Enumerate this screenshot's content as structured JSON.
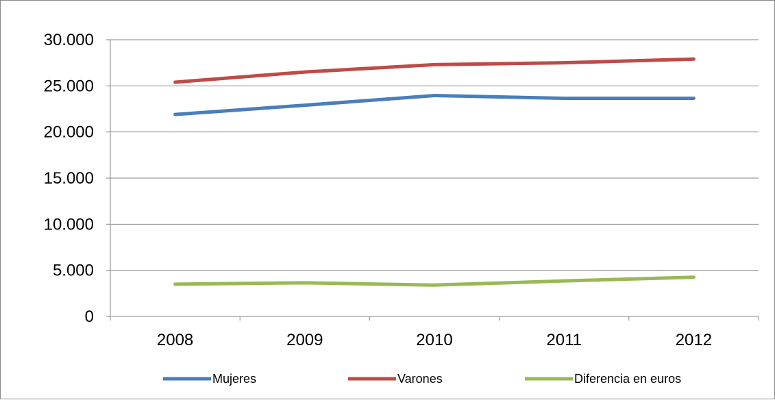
{
  "chart_data": {
    "type": "line",
    "categories": [
      "2008",
      "2009",
      "2010",
      "2011",
      "2012"
    ],
    "series": [
      {
        "name": "Mujeres",
        "color": "#4a7ebb",
        "values": [
          21900,
          22900,
          23950,
          23650,
          23650
        ]
      },
      {
        "name": "Varones",
        "color": "#be4b48",
        "values": [
          25400,
          26500,
          27300,
          27500,
          27900
        ]
      },
      {
        "name": "Diferencia en euros",
        "color": "#98b954",
        "values": [
          3500,
          3650,
          3400,
          3850,
          4250
        ]
      }
    ],
    "ylim": [
      0,
      30000
    ],
    "yticks": [
      0,
      5000,
      10000,
      15000,
      20000,
      25000,
      30000
    ],
    "ytick_labels": [
      "0",
      "5.000",
      "10.000",
      "15.000",
      "20.000",
      "25.000",
      "30.000"
    ],
    "grid": true,
    "legend_position": "bottom"
  }
}
